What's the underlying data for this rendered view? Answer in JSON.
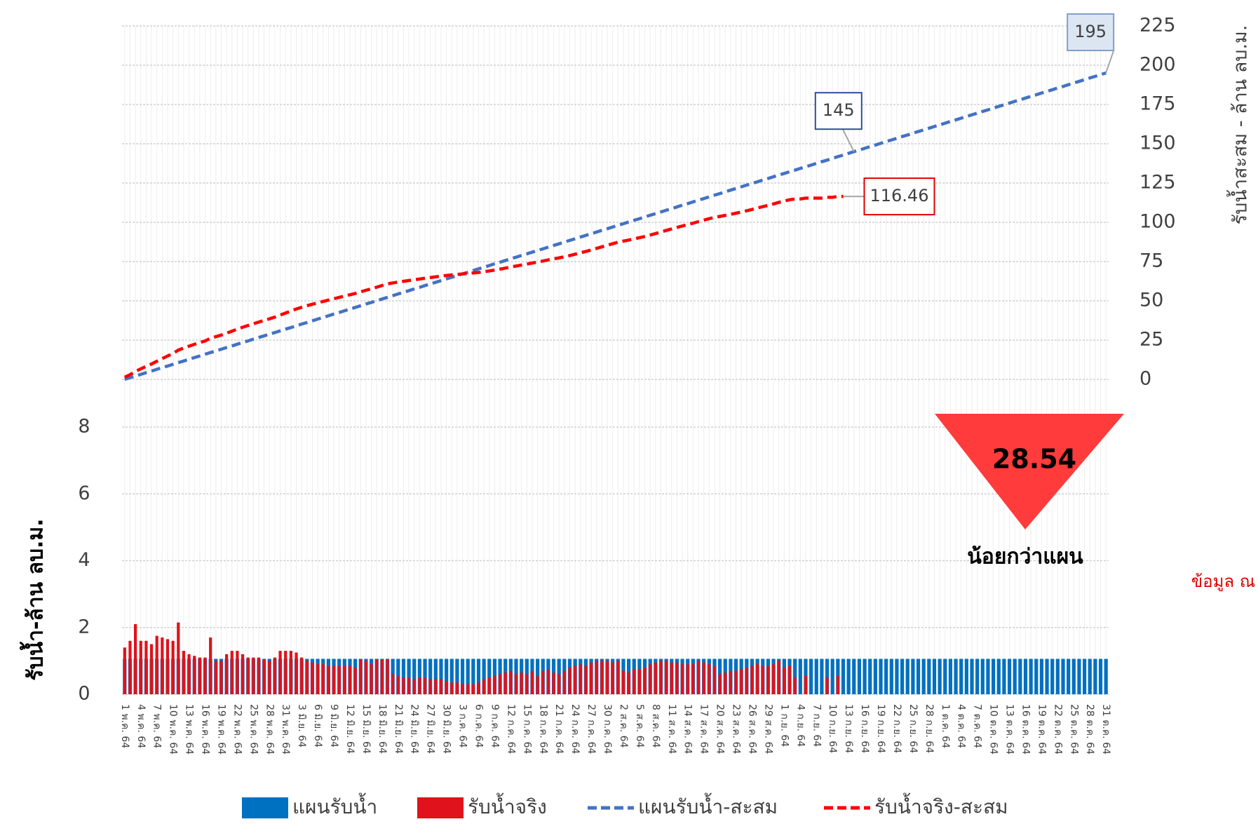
{
  "chart_data": {
    "type": "bar",
    "y_title": "รับน้ำ-ล้าน ลบ.ม.",
    "y2_title": "รับน้ำสะสม - ล้าน ลบ.ม.",
    "ylim": [
      0,
      8
    ],
    "yticks": [
      0,
      2,
      4,
      6,
      8
    ],
    "y2lim": [
      0,
      225
    ],
    "y2ticks": [
      0,
      25,
      50,
      75,
      100,
      125,
      150,
      175,
      200,
      225
    ],
    "grid": true,
    "legend": "bottom",
    "annotations": {
      "deficit": 28.54,
      "deficit_label": "น้อยกว่าแผน",
      "note": "ข้อมูล ณ"
    },
    "categories": [
      "1 พ.ค. 64",
      null,
      null,
      "4 พ.ค. 64",
      null,
      null,
      "7 พ.ค. 64",
      null,
      null,
      "10 พ.ค. 64",
      null,
      null,
      "13 พ.ค. 64",
      null,
      null,
      "16 พ.ค. 64",
      null,
      null,
      "19 พ.ค. 64",
      null,
      null,
      "22 พ.ค. 64",
      null,
      null,
      "25 พ.ค. 64",
      null,
      null,
      "28 พ.ค. 64",
      null,
      null,
      "31 พ.ค. 64",
      null,
      null,
      "3 มิ.ย. 64",
      null,
      null,
      "6 มิ.ย. 64",
      null,
      null,
      "9 มิ.ย. 64",
      null,
      null,
      "12 มิ.ย. 64",
      null,
      null,
      "15 มิ.ย. 64",
      null,
      null,
      "18 มิ.ย. 64",
      null,
      null,
      "21 มิ.ย. 64",
      null,
      null,
      "24 มิ.ย. 64",
      null,
      null,
      "27 มิ.ย. 64",
      null,
      null,
      "30 มิ.ย. 64",
      null,
      null,
      "3 ก.ค. 64",
      null,
      null,
      "6 ก.ค. 64",
      null,
      null,
      "9 ก.ค. 64",
      null,
      null,
      "12 ก.ค. 64",
      null,
      null,
      "15 ก.ค. 64",
      null,
      null,
      "18 ก.ค. 64",
      null,
      null,
      "21 ก.ค. 64",
      null,
      null,
      "24 ก.ค. 64",
      null,
      null,
      "27 ก.ค. 64",
      null,
      null,
      "30 ก.ค. 64",
      null,
      null,
      "2 ส.ค. 64",
      null,
      null,
      "5 ส.ค. 64",
      null,
      null,
      "8 ส.ค. 64",
      null,
      null,
      "11 ส.ค. 64",
      null,
      null,
      "14 ส.ค. 64",
      null,
      null,
      "17 ส.ค. 64",
      null,
      null,
      "20 ส.ค. 64",
      null,
      null,
      "23 ส.ค. 64",
      null,
      null,
      "26 ส.ค. 64",
      null,
      null,
      "29 ส.ค. 64",
      null,
      null,
      "1 ก.ย. 64",
      null,
      null,
      "4 ก.ย. 64",
      null,
      null,
      "7 ก.ย. 64",
      null,
      null,
      "10 ก.ย. 64",
      null,
      null,
      "13 ก.ย. 64",
      null,
      null,
      "16 ก.ย. 64",
      null,
      null,
      "19 ก.ย. 64",
      null,
      null,
      "22 ก.ย. 64",
      null,
      null,
      "25 ก.ย. 64",
      null,
      null,
      "28 ก.ย. 64",
      null,
      null,
      "1 ต.ค. 64",
      null,
      null,
      "4 ต.ค. 64",
      null,
      null,
      "7 ต.ค. 64",
      null,
      null,
      "10 ต.ค. 64",
      null,
      null,
      "13 ต.ค. 64",
      null,
      null,
      "16 ต.ค. 64",
      null,
      null,
      "19 ต.ค. 64",
      null,
      null,
      "22 ต.ค. 64",
      null,
      null,
      "25 ต.ค. 64",
      null,
      null,
      "28 ต.ค. 64",
      null,
      null,
      "31 ต.ค. 64"
    ],
    "series": [
      {
        "name": "แผนรับน้ำ",
        "type": "bar",
        "color": "#0070c0",
        "values": [
          1.06,
          1.06,
          1.06,
          1.06,
          1.06,
          1.06,
          1.06,
          1.06,
          1.06,
          1.06,
          1.06,
          1.06,
          1.06,
          1.06,
          1.06,
          1.06,
          1.06,
          1.06,
          1.06,
          1.06,
          1.06,
          1.06,
          1.06,
          1.06,
          1.06,
          1.06,
          1.06,
          1.06,
          1.06,
          1.06,
          1.06,
          1.06,
          1.06,
          1.06,
          1.06,
          1.06,
          1.06,
          1.06,
          1.06,
          1.06,
          1.06,
          1.06,
          1.06,
          1.06,
          1.06,
          1.06,
          1.06,
          1.06,
          1.06,
          1.06,
          1.06,
          1.06,
          1.06,
          1.06,
          1.06,
          1.06,
          1.06,
          1.06,
          1.06,
          1.06,
          1.06,
          1.06,
          1.06,
          1.06,
          1.06,
          1.06,
          1.06,
          1.06,
          1.06,
          1.06,
          1.06,
          1.06,
          1.06,
          1.06,
          1.06,
          1.06,
          1.06,
          1.06,
          1.06,
          1.06,
          1.06,
          1.06,
          1.06,
          1.06,
          1.06,
          1.06,
          1.06,
          1.06,
          1.06,
          1.06,
          1.06,
          1.06,
          1.06,
          1.06,
          1.06,
          1.06,
          1.06,
          1.06,
          1.06,
          1.06,
          1.06,
          1.06,
          1.06,
          1.06,
          1.06,
          1.06,
          1.06,
          1.06,
          1.06,
          1.06,
          1.06,
          1.06,
          1.06,
          1.06,
          1.06,
          1.06,
          1.06,
          1.06,
          1.06,
          1.06,
          1.06,
          1.06,
          1.06,
          1.06,
          1.06,
          1.06,
          1.06,
          1.06,
          1.06,
          1.06,
          1.06,
          1.06,
          1.06,
          1.06,
          1.06,
          1.06,
          1.06,
          1.06,
          1.06,
          1.06,
          1.06,
          1.06,
          1.06,
          1.06,
          1.06,
          1.06,
          1.06,
          1.06,
          1.06,
          1.06,
          1.06,
          1.06,
          1.06,
          1.06,
          1.06,
          1.06,
          1.06,
          1.06,
          1.06,
          1.06,
          1.06,
          1.06,
          1.06,
          1.06,
          1.06,
          1.06,
          1.06,
          1.06,
          1.06,
          1.06,
          1.06,
          1.06,
          1.06,
          1.06,
          1.06,
          1.06,
          1.06,
          1.06,
          1.06,
          1.06,
          1.06,
          1.06,
          1.06,
          1.06
        ]
      },
      {
        "name": "รับน้ำจริง",
        "type": "bar",
        "color": "#e0121b",
        "values": [
          1.4,
          1.6,
          2.1,
          1.6,
          1.6,
          1.5,
          1.75,
          1.7,
          1.65,
          1.6,
          2.15,
          1.3,
          1.2,
          1.15,
          1.1,
          1.1,
          1.7,
          1.0,
          1.0,
          1.2,
          1.3,
          1.3,
          1.2,
          1.1,
          1.1,
          1.1,
          1.05,
          1.0,
          1.1,
          1.3,
          1.3,
          1.3,
          1.25,
          1.1,
          1.0,
          0.95,
          0.9,
          0.9,
          0.85,
          0.85,
          0.85,
          0.85,
          0.85,
          0.8,
          1.05,
          1.0,
          0.9,
          1.05,
          1.05,
          1.05,
          0.6,
          0.55,
          0.5,
          0.5,
          0.45,
          0.5,
          0.5,
          0.45,
          0.45,
          0.45,
          0.4,
          0.35,
          0.35,
          0.3,
          0.3,
          0.3,
          0.35,
          0.45,
          0.5,
          0.55,
          0.6,
          0.65,
          0.7,
          0.6,
          0.65,
          0.6,
          0.7,
          0.55,
          0.7,
          0.75,
          0.65,
          0.6,
          0.7,
          0.8,
          0.85,
          0.9,
          0.85,
          0.95,
          1.0,
          1.0,
          1.0,
          0.95,
          1.0,
          0.7,
          0.65,
          0.75,
          0.75,
          0.8,
          0.9,
          0.95,
          1.0,
          1.0,
          0.95,
          0.95,
          0.9,
          0.9,
          0.9,
          1.0,
          0.95,
          0.9,
          0.85,
          0.6,
          0.65,
          0.7,
          0.7,
          0.75,
          0.8,
          0.85,
          0.9,
          0.85,
          0.85,
          0.9,
          1.01,
          0.8,
          0.85,
          0.5,
          0,
          0.55,
          0,
          0,
          0,
          0.5,
          0,
          0.55,
          0,
          null,
          null,
          null,
          null,
          null,
          null,
          null,
          null,
          null,
          null,
          null,
          null,
          null,
          null,
          null,
          null,
          null,
          null,
          null,
          null,
          null,
          null,
          null,
          null,
          null,
          null,
          null,
          null,
          null,
          null,
          null,
          null,
          null,
          null,
          null,
          null,
          null,
          null,
          null,
          null,
          null,
          null,
          null,
          null,
          null,
          null,
          null,
          null,
          null
        ]
      },
      {
        "name": "แผนรับน้ำ-สะสม",
        "type": "line",
        "axis": "y2",
        "color": "#4472c4",
        "values": [
          0,
          1.1,
          2.1,
          3.2,
          4.3,
          5.3,
          6.4,
          7.5,
          8.5,
          9.6,
          10.7,
          11.7,
          12.8,
          13.9,
          14.9,
          16.0,
          17.1,
          18.1,
          19.2,
          20.3,
          21.3,
          22.4,
          23.5,
          24.5,
          25.6,
          26.7,
          27.7,
          28.8,
          29.8,
          30.9,
          32.0,
          33.0,
          34.1,
          35.2,
          36.2,
          37.3,
          38.4,
          39.4,
          40.5,
          41.6,
          42.6,
          43.7,
          44.8,
          45.8,
          46.9,
          48.0,
          49.0,
          50.1,
          51.2,
          52.2,
          53.3,
          54.4,
          55.4,
          56.5,
          57.6,
          58.6,
          59.7,
          60.8,
          61.8,
          62.9,
          64.0,
          65.0,
          66.1,
          67.2,
          68.2,
          69.3,
          70.4,
          71.4,
          72.5,
          73.6,
          74.6,
          75.7,
          76.8,
          77.8,
          78.9,
          79.9,
          81.0,
          82.1,
          83.1,
          84.2,
          85.3,
          86.3,
          87.4,
          88.5,
          89.5,
          90.6,
          91.7,
          92.7,
          93.8,
          94.9,
          95.9,
          97.0,
          98.1,
          99.1,
          100.2,
          101.3,
          102.3,
          103.4,
          104.5,
          105.5,
          106.6,
          107.7,
          108.7,
          109.8,
          110.9,
          111.9,
          113.0,
          114.1,
          115.1,
          116.2,
          117.3,
          118.3,
          119.4,
          120.5,
          121.5,
          122.6,
          123.7,
          124.7,
          125.8,
          126.9,
          127.9,
          129.0,
          130.1,
          131.1,
          132.2,
          133.2,
          134.3,
          135.4,
          136.4,
          137.5,
          138.6,
          139.6,
          140.7,
          141.8,
          142.8,
          143.9,
          145.0,
          146.0,
          147.1,
          148.2,
          149.2,
          150.3,
          151.4,
          152.4,
          153.5,
          154.6,
          155.6,
          156.7,
          157.8,
          158.8,
          159.9,
          161.0,
          162.0,
          163.1,
          164.2,
          165.2,
          166.3,
          167.4,
          168.4,
          169.5,
          170.6,
          171.6,
          172.7,
          173.8,
          174.8,
          175.9,
          177.0,
          178.0,
          179.1,
          180.2,
          181.2,
          182.3,
          183.3,
          184.4,
          185.5,
          186.5,
          187.6,
          188.7,
          189.7,
          190.8,
          191.9,
          192.9,
          194.0,
          195.1
        ],
        "value_labels": [
          null,
          null,
          null,
          null,
          null,
          null,
          null,
          null,
          null,
          null,
          null,
          null,
          null,
          null,
          null,
          null,
          null,
          null,
          null,
          null,
          null,
          null,
          null,
          null,
          null,
          null,
          null,
          null,
          null,
          null,
          null,
          null,
          null,
          null,
          null,
          null,
          null,
          null,
          null,
          null,
          null,
          null,
          null,
          null,
          null,
          null,
          null,
          null,
          null,
          null,
          null,
          null,
          null,
          null,
          null,
          null,
          null,
          null,
          null,
          null,
          null,
          null,
          null,
          null,
          null,
          null,
          null,
          null,
          null,
          null,
          null,
          null,
          null,
          null,
          null,
          null,
          null,
          null,
          null,
          null,
          null,
          null,
          null,
          null,
          null,
          null,
          null,
          null,
          null,
          null,
          null,
          null,
          null,
          null,
          null,
          null,
          null,
          null,
          null,
          null,
          null,
          null,
          null,
          null,
          null,
          null,
          null,
          null,
          null,
          null,
          null,
          null,
          null,
          null,
          null,
          null,
          null,
          null,
          null,
          null,
          null,
          null,
          null,
          null,
          null,
          null,
          null,
          null,
          null,
          null,
          null,
          null,
          null,
          null,
          null,
          null,
          "145",
          null,
          null,
          null,
          null,
          null,
          null,
          null,
          null,
          null,
          null,
          null,
          null,
          null,
          null,
          null,
          null,
          null,
          null,
          null,
          null,
          null,
          null,
          null,
          null,
          null,
          null,
          null,
          null,
          null,
          null,
          null,
          null,
          null,
          null,
          null,
          null,
          null,
          null,
          null,
          null,
          null,
          null,
          null,
          null,
          null,
          null,
          "195"
        ]
      },
      {
        "name": "รับน้ำจริง-สะสม",
        "type": "line",
        "axis": "y2",
        "color": "#ff0000",
        "values": [
          1.4,
          3.0,
          5.1,
          6.7,
          8.3,
          9.8,
          11.55,
          13.25,
          14.9,
          16.5,
          18.65,
          19.95,
          21.15,
          22.3,
          23.4,
          24.5,
          26.2,
          27.2,
          28.2,
          29.4,
          30.7,
          32.0,
          33.2,
          34.3,
          35.4,
          36.5,
          37.55,
          38.55,
          39.65,
          40.95,
          42.25,
          43.55,
          44.8,
          45.9,
          46.9,
          47.85,
          48.75,
          49.65,
          50.5,
          51.35,
          52.2,
          53.05,
          53.9,
          54.7,
          55.75,
          56.75,
          57.65,
          58.7,
          59.75,
          60.8,
          61.4,
          61.95,
          62.45,
          62.95,
          63.4,
          63.9,
          64.4,
          64.85,
          65.3,
          65.75,
          66.15,
          66.5,
          66.85,
          67.15,
          67.45,
          67.75,
          68.1,
          68.55,
          69.05,
          69.6,
          70.2,
          70.85,
          71.55,
          72.15,
          72.8,
          73.4,
          74.1,
          74.65,
          75.35,
          76.1,
          76.75,
          77.35,
          78.05,
          78.85,
          79.7,
          80.6,
          81.45,
          82.4,
          83.4,
          84.4,
          85.4,
          86.35,
          87.35,
          88.05,
          88.7,
          89.45,
          90.2,
          91.0,
          91.9,
          92.85,
          93.85,
          94.85,
          95.8,
          96.75,
          97.65,
          98.55,
          99.45,
          100.45,
          101.4,
          102.3,
          103.15,
          103.75,
          104.4,
          105.1,
          105.8,
          106.55,
          107.35,
          108.2,
          109.1,
          109.95,
          110.8,
          111.7,
          112.71,
          113.51,
          114.36,
          114.86,
          114.86,
          115.41,
          115.41,
          115.41,
          115.41,
          115.91,
          115.91,
          116.46,
          116.46,
          null,
          null,
          null,
          null,
          null,
          null,
          null,
          null,
          null,
          null,
          null,
          null,
          null,
          null,
          null,
          null,
          null,
          null,
          null,
          null,
          null,
          null,
          null,
          null,
          null,
          null,
          null,
          null,
          null,
          null,
          null,
          null,
          null,
          null,
          null,
          null,
          null,
          null,
          null,
          null,
          null,
          null,
          null,
          null,
          null,
          null,
          null,
          null,
          null
        ]
      }
    ]
  }
}
